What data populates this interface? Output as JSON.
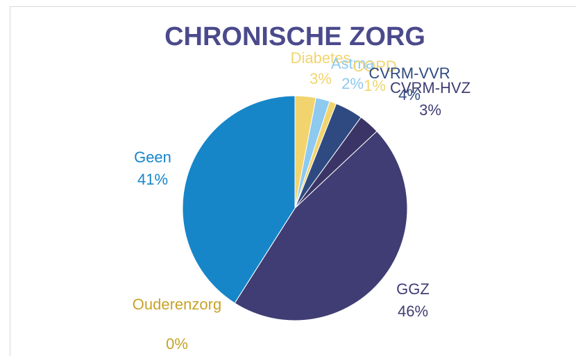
{
  "chart_data": {
    "type": "pie",
    "title": "CHRONISCHE ZORG",
    "categories": [
      "Diabetes",
      "Astma",
      "COPD",
      "CVRM-VVR",
      "CVRM-HVZ",
      "GGZ",
      "Ouderenzorg",
      "Geen"
    ],
    "values": [
      3,
      2,
      1,
      4,
      3,
      46,
      0,
      41
    ],
    "value_labels": [
      "3%",
      "2%",
      "1%",
      "4%",
      "3%",
      "46%",
      "0%",
      "41%"
    ],
    "colors": [
      "#f2d46e",
      "#8ec9ef",
      "#f2d46e",
      "#2e4a80",
      "#3a3566",
      "#3f3d73",
      "#c9a227",
      "#1686c9"
    ]
  }
}
